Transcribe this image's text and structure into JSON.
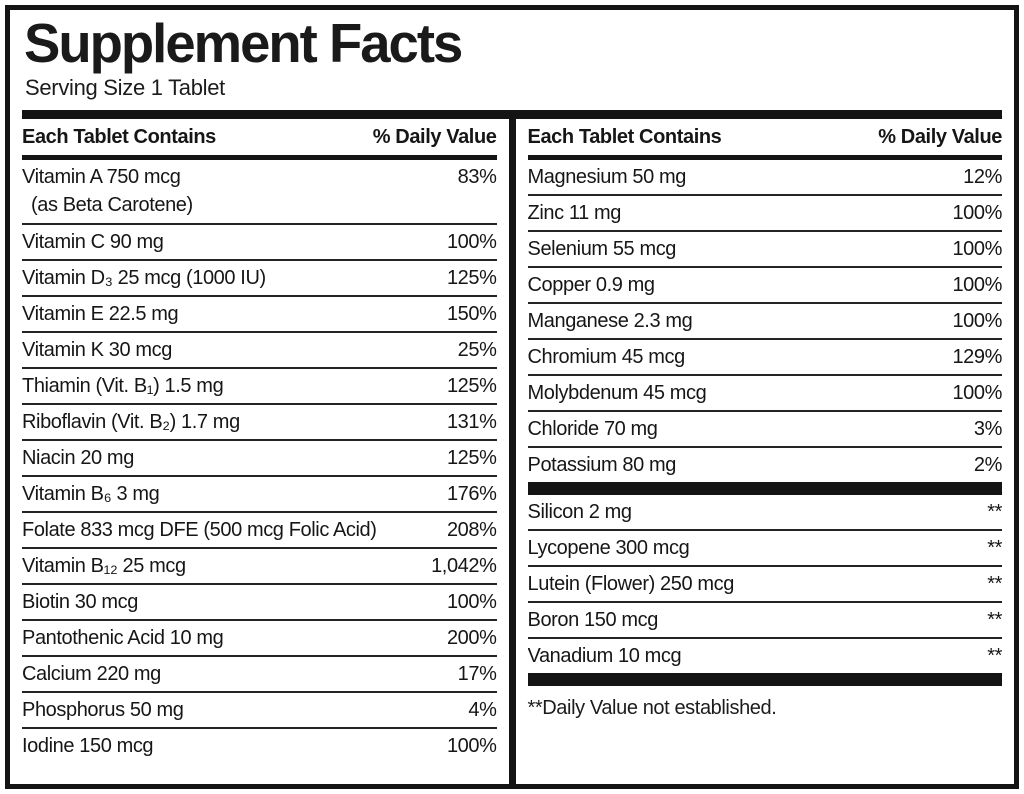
{
  "label": {
    "title": "Supplement Facts",
    "serving_size": "Serving Size 1 Tablet",
    "column_header": {
      "name": "Each Tablet Contains",
      "value": "% Daily Value"
    },
    "footnote": "**Daily Value not established.",
    "colors": {
      "ink": "#141414",
      "background": "#ffffff"
    }
  },
  "left_rows": [
    {
      "name": "Vitamin A 750 mcg",
      "name_line2": "(as Beta Carotene)",
      "value": "83%"
    },
    {
      "name": "Vitamin C 90 mg",
      "value": "100%"
    },
    {
      "name": "Vitamin D₃ 25 mcg (1000 IU)",
      "value": "125%"
    },
    {
      "name": "Vitamin E 22.5 mg",
      "value": "150%"
    },
    {
      "name": "Vitamin K 30 mcg",
      "value": "25%"
    },
    {
      "name": "Thiamin (Vit. B₁) 1.5 mg",
      "value": "125%"
    },
    {
      "name": "Riboflavin (Vit. B₂) 1.7 mg",
      "value": "131%"
    },
    {
      "name": "Niacin 20 mg",
      "value": "125%"
    },
    {
      "name": "Vitamin B₆ 3 mg",
      "value": "176%"
    },
    {
      "name": "Folate 833 mcg DFE (500 mcg Folic Acid)",
      "value": "208%"
    },
    {
      "name": "Vitamin B₁₂ 25 mcg",
      "value": "1,042%"
    },
    {
      "name": "Biotin 30 mcg",
      "value": "100%"
    },
    {
      "name": "Pantothenic Acid 10 mg",
      "value": "200%"
    },
    {
      "name": "Calcium 220 mg",
      "value": "17%"
    },
    {
      "name": "Phosphorus 50 mg",
      "value": "4%"
    },
    {
      "name": "Iodine 150 mcg",
      "value": "100%"
    }
  ],
  "right_rows_main": [
    {
      "name": "Magnesium 50 mg",
      "value": "12%"
    },
    {
      "name": "Zinc 11 mg",
      "value": "100%"
    },
    {
      "name": "Selenium 55 mcg",
      "value": "100%"
    },
    {
      "name": "Copper 0.9 mg",
      "value": "100%"
    },
    {
      "name": "Manganese 2.3 mg",
      "value": "100%"
    },
    {
      "name": "Chromium 45 mcg",
      "value": "129%"
    },
    {
      "name": "Molybdenum 45 mcg",
      "value": "100%"
    },
    {
      "name": "Chloride 70 mg",
      "value": "3%"
    },
    {
      "name": "Potassium 80 mg",
      "value": "2%"
    }
  ],
  "right_rows_no_dv": [
    {
      "name": "Silicon 2 mg",
      "value": "**"
    },
    {
      "name": "Lycopene 300 mcg",
      "value": "**"
    },
    {
      "name": "Lutein (Flower) 250 mcg",
      "value": "**"
    },
    {
      "name": "Boron 150 mcg",
      "value": "**"
    },
    {
      "name": "Vanadium 10 mcg",
      "value": "**"
    }
  ]
}
